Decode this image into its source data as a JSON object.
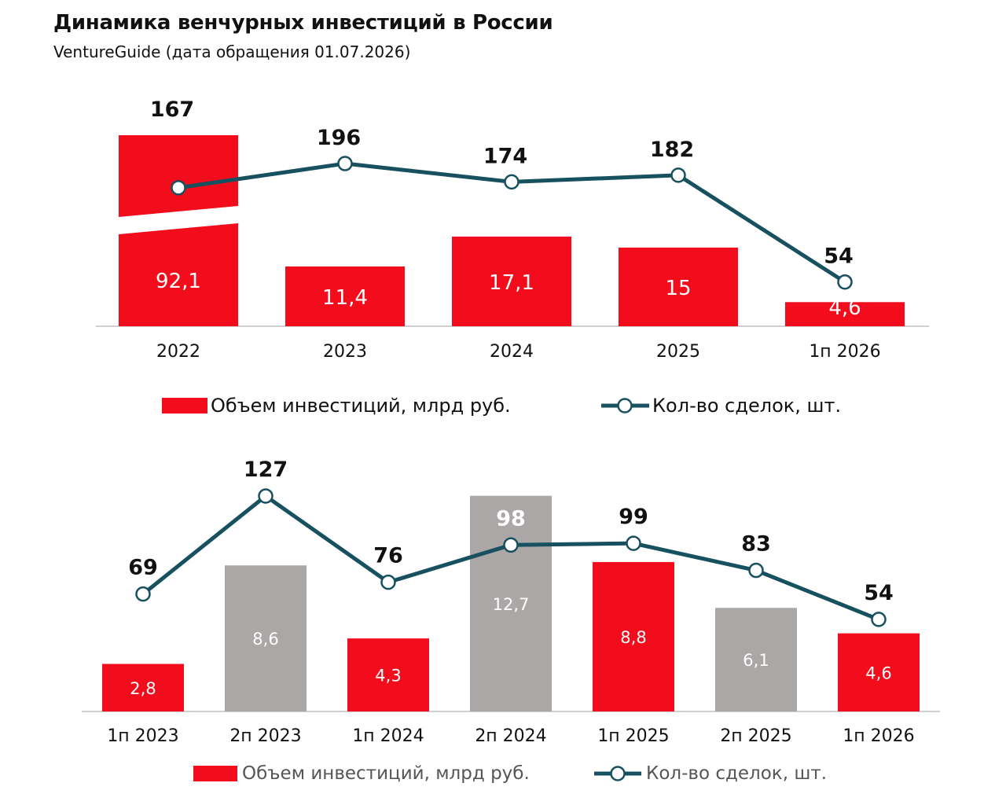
{
  "header": {
    "title": "Динамика венчурных инвестиций в России",
    "subtitle": "VentureGuide (дата обращения 01.07.2026)"
  },
  "colors": {
    "red": "#F20C1C",
    "gray": "#ABA7A6",
    "line": "#17505F",
    "axis": "#cfcfcf",
    "legend_text_bottom": "#555555"
  },
  "chart_data": [
    {
      "type": "bar",
      "categories": [
        "2022",
        "2023",
        "2024",
        "2025",
        "1п 2026"
      ],
      "series": [
        {
          "name": "Объем инвестиций, млрд руб.",
          "type": "bar",
          "values": [
            92.1,
            11.4,
            17.1,
            15,
            4.6
          ],
          "labels": [
            "92,1",
            "11,4",
            "17,1",
            "15",
            "4,6"
          ],
          "color": "#F20C1C"
        },
        {
          "name": "Кол-во сделок, шт.",
          "type": "line",
          "values": [
            167,
            196,
            174,
            182,
            54
          ],
          "labels": [
            "167",
            "196",
            "174",
            "182",
            "54"
          ],
          "color": "#17505F"
        }
      ],
      "broken_axis": "first bar truncated",
      "legend_position": "bottom",
      "legend": [
        "Объем инвестиций, млрд руб.",
        "Кол-во сделок, шт."
      ]
    },
    {
      "type": "bar",
      "categories": [
        "1п 2023",
        "2п 2023",
        "1п 2024",
        "2п 2024",
        "1п 2025",
        "2п 2025",
        "1п 2026"
      ],
      "series": [
        {
          "name": "Объем инвестиций, млрд руб.",
          "type": "bar",
          "values": [
            2.8,
            8.6,
            4.3,
            12.7,
            8.8,
            6.1,
            4.6
          ],
          "labels": [
            "2,8",
            "8,6",
            "4,3",
            "12,7",
            "8,8",
            "6,1",
            "4,6"
          ],
          "bar_colors": [
            "#F20C1C",
            "#ABA7A6",
            "#F20C1C",
            "#ABA7A6",
            "#F20C1C",
            "#ABA7A6",
            "#F20C1C"
          ]
        },
        {
          "name": "Кол-во сделок, шт.",
          "type": "line",
          "values": [
            69,
            127,
            76,
            98,
            99,
            83,
            54
          ],
          "labels": [
            "69",
            "127",
            "76",
            "98",
            "99",
            "83",
            "54"
          ],
          "color": "#17505F"
        }
      ],
      "legend_position": "bottom",
      "legend": [
        "Объем инвестиций, млрд руб.",
        "Кол-во сделок, шт."
      ]
    }
  ]
}
